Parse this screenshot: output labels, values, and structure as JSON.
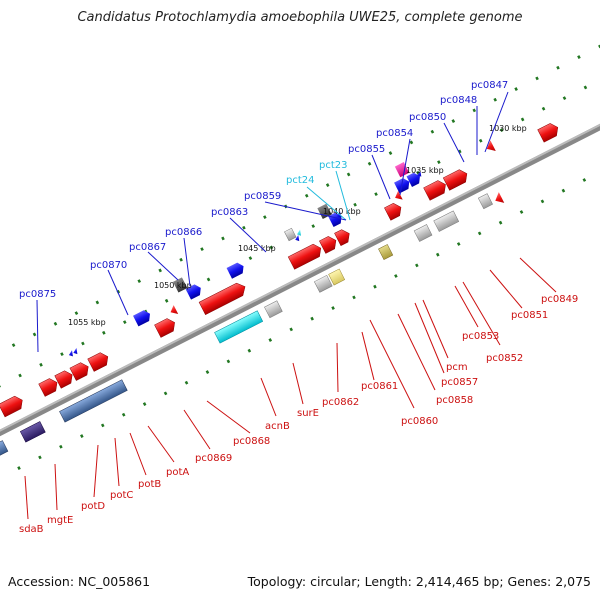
{
  "title": "Candidatus Protochlamydia amoebophila UWE25, complete genome",
  "footer": {
    "accession": "Accession: NC_005861",
    "summary": "Topology: circular; Length: 2,414,465 bp; Genes: 2,075"
  },
  "scale": [
    {
      "text": "1030 kbp"
    },
    {
      "text": "1035 kbp"
    },
    {
      "text": "1040 kbp"
    },
    {
      "text": "1045 kbp"
    },
    {
      "text": "1050 kbp"
    },
    {
      "text": "1055 kbp"
    }
  ],
  "labels_top": [
    {
      "text": "pc0847"
    },
    {
      "text": "pc0848"
    },
    {
      "text": "pc0850"
    },
    {
      "text": "pc0854"
    },
    {
      "text": "pc0855"
    },
    {
      "text": "pct23"
    },
    {
      "text": "pct24"
    },
    {
      "text": "pc0859"
    },
    {
      "text": "pc0863"
    },
    {
      "text": "pc0866"
    },
    {
      "text": "pc0867"
    },
    {
      "text": "pc0870"
    },
    {
      "text": "pc0875"
    }
  ],
  "labels_bottom": [
    {
      "text": "pc0849"
    },
    {
      "text": "pc0851"
    },
    {
      "text": "pc0852"
    },
    {
      "text": "pc0853"
    },
    {
      "text": "pcm"
    },
    {
      "text": "pc0857"
    },
    {
      "text": "pc0858"
    },
    {
      "text": "pc0860"
    },
    {
      "text": "pc0861"
    },
    {
      "text": "pc0862"
    },
    {
      "text": "surE"
    },
    {
      "text": "acnB"
    },
    {
      "text": "pc0868"
    },
    {
      "text": "pc0869"
    },
    {
      "text": "potA"
    },
    {
      "text": "potB"
    },
    {
      "text": "potC"
    },
    {
      "text": "potD"
    },
    {
      "text": "mgtE"
    },
    {
      "text": "sdaB"
    }
  ],
  "colors": {
    "forward_gene": "#ee1111",
    "reverse_gene": "#1111ee",
    "trna": "#33ccee",
    "rrna_pseudo": "#aaaaaa",
    "backbone": "#888888",
    "tick": "#227722"
  }
}
